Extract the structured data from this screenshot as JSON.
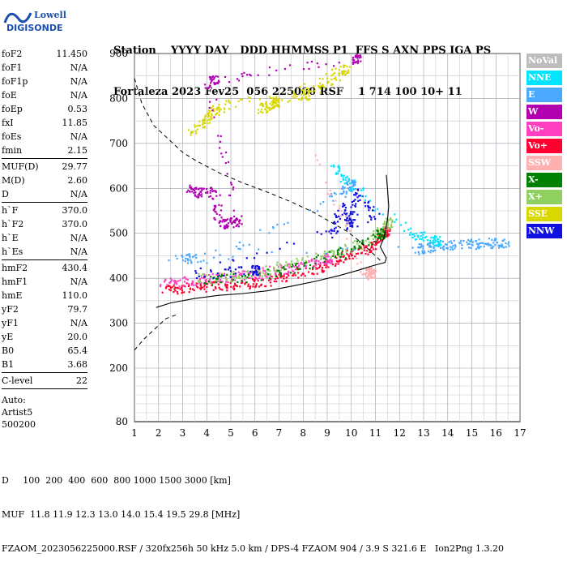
{
  "logo": {
    "line1": "Lowell",
    "line2": "DIGISONDE"
  },
  "header": {
    "row1": "Station    YYYY DAY   DDD HHMMSS P1  FFS S AXN PPS IGA PS",
    "row2": "Fortaleza 2023 Fev25  056 225000 RSF    1 714 100 10+ 11"
  },
  "params": {
    "group1": [
      {
        "k": "foF2",
        "v": "11.450"
      },
      {
        "k": "foF1",
        "v": "N/A"
      },
      {
        "k": "foF1p",
        "v": "N/A"
      },
      {
        "k": "foE",
        "v": "N/A"
      },
      {
        "k": "foEp",
        "v": "0.53"
      },
      {
        "k": "fxI",
        "v": "11.85"
      },
      {
        "k": "foEs",
        "v": "N/A"
      },
      {
        "k": "fmin",
        "v": "2.15"
      }
    ],
    "group2": [
      {
        "k": "MUF(D)",
        "v": "29.77"
      },
      {
        "k": "M(D)",
        "v": "2.60"
      },
      {
        "k": "D",
        "v": "N/A"
      }
    ],
    "group3": [
      {
        "k": "h`F",
        "v": "370.0"
      },
      {
        "k": "h`F2",
        "v": "370.0"
      },
      {
        "k": "h`E",
        "v": "N/A"
      },
      {
        "k": "h`Es",
        "v": "N/A"
      }
    ],
    "group4": [
      {
        "k": "hmF2",
        "v": "430.4"
      },
      {
        "k": "hmF1",
        "v": "N/A"
      },
      {
        "k": "hmE",
        "v": "110.0"
      },
      {
        "k": "yF2",
        "v": "79.7"
      },
      {
        "k": "yF1",
        "v": "N/A"
      },
      {
        "k": "yE",
        "v": "20.0"
      },
      {
        "k": "B0",
        "v": "65.4"
      },
      {
        "k": "B1",
        "v": "3.68"
      }
    ],
    "group5": [
      {
        "k": "C-level",
        "v": "22"
      }
    ]
  },
  "auto": {
    "line1": "Auto:",
    "line2": "Artist5",
    "line3": "500200"
  },
  "footer": {
    "line1": "D     100  200  400  600  800 1000 1500 3000 [km]",
    "line2": "MUF  11.8 11.9 12.3 13.0 14.0 15.4 19.5 29.8 [MHz]",
    "line3": "FZAOM_2023056225000.RSF / 320fx256h 50 kHz 5.0 km / DPS-4 FZAOM 904 / 3.9 S 321.6 E   Ion2Png 1.3.20"
  },
  "legend": [
    {
      "label": "NoVal",
      "color": "#bdbdbd"
    },
    {
      "label": "NNE",
      "color": "#00e5ff"
    },
    {
      "label": "E",
      "color": "#4aa8ff"
    },
    {
      "label": "W",
      "color": "#b000b0"
    },
    {
      "label": "Vo-",
      "color": "#ff40c0"
    },
    {
      "label": "Vo+",
      "color": "#ff0030"
    },
    {
      "label": "SSW",
      "color": "#ffb0b0"
    },
    {
      "label": "X-",
      "color": "#008000"
    },
    {
      "label": "X+",
      "color": "#90d060"
    },
    {
      "label": "SSE",
      "color": "#d8d800"
    },
    {
      "label": "NNW",
      "color": "#1010e0"
    }
  ],
  "chart_data": {
    "type": "scatter",
    "x_ticks": [
      "1",
      "2",
      "3",
      "4",
      "5",
      "6",
      "7",
      "8",
      "9",
      "10",
      "11",
      "12",
      "13",
      "14",
      "15",
      "16",
      "17"
    ],
    "y_ticks": [
      "80",
      "200",
      "300",
      "400",
      "500",
      "600",
      "700",
      "800",
      "900"
    ],
    "xlim": [
      1,
      17
    ],
    "ylim_label_range": [
      80,
      900
    ],
    "y_scale": "hybrid (80 to 200 compressed, 200 to 900 linear)",
    "grid": true,
    "series": [
      {
        "name": "Vo+",
        "color": "#ff0030",
        "points": [
          [
            2.2,
            375
          ],
          [
            3,
            380
          ],
          [
            4,
            383
          ],
          [
            5,
            385
          ],
          [
            6,
            390
          ],
          [
            7,
            400
          ],
          [
            8,
            415
          ],
          [
            9,
            430
          ],
          [
            9.8,
            450
          ],
          [
            10.5,
            465
          ],
          [
            11,
            480
          ],
          [
            11.4,
            505
          ]
        ]
      },
      {
        "name": "Vo-",
        "color": "#ff40c0",
        "points": [
          [
            2.1,
            390
          ],
          [
            3,
            395
          ],
          [
            4,
            400
          ],
          [
            5,
            405
          ],
          [
            6,
            410
          ],
          [
            7,
            420
          ],
          [
            8,
            430
          ],
          [
            9,
            445
          ]
        ]
      },
      {
        "name": "X+",
        "color": "#90d060",
        "points": [
          [
            3.5,
            400
          ],
          [
            5,
            405
          ],
          [
            6.5,
            420
          ],
          [
            8,
            440
          ],
          [
            9.5,
            460
          ],
          [
            10.8,
            490
          ],
          [
            11.5,
            525
          ]
        ]
      },
      {
        "name": "X-",
        "color": "#008000",
        "points": [
          [
            4,
            395
          ],
          [
            6,
            405
          ],
          [
            8,
            430
          ],
          [
            10,
            465
          ],
          [
            11.2,
            500
          ]
        ]
      },
      {
        "name": "SSE",
        "color": "#d8d800",
        "points": [
          [
            3.2,
            720
          ],
          [
            3.8,
            750
          ],
          [
            4.2,
            770
          ],
          [
            4.8,
            790
          ],
          [
            7.8,
            805
          ],
          [
            8.5,
            820
          ],
          [
            9.3,
            850
          ],
          [
            9.8,
            870
          ],
          [
            6.2,
            775
          ],
          [
            6.8,
            790
          ]
        ]
      },
      {
        "name": "W",
        "color": "#b000b0",
        "points": [
          [
            3.2,
            600
          ],
          [
            3.7,
            590
          ],
          [
            4.3,
            595
          ],
          [
            4.5,
            520
          ],
          [
            5,
            525
          ],
          [
            5.3,
            530
          ],
          [
            4,
            840
          ],
          [
            4.5,
            845
          ],
          [
            10.2,
            890
          ]
        ]
      },
      {
        "name": "E",
        "color": "#4aa8ff",
        "points": [
          [
            12.7,
            465
          ],
          [
            13.2,
            470
          ],
          [
            14,
            475
          ],
          [
            15,
            478
          ],
          [
            15.8,
            480
          ],
          [
            16.5,
            480
          ],
          [
            2.5,
            450
          ],
          [
            4,
            440
          ],
          [
            9.6,
            590
          ],
          [
            10,
            610
          ]
        ]
      },
      {
        "name": "NNW",
        "color": "#1010e0",
        "points": [
          [
            9.2,
            500
          ],
          [
            9.5,
            560
          ],
          [
            10,
            520
          ],
          [
            10.2,
            590
          ],
          [
            11,
            540
          ],
          [
            3.5,
            410
          ],
          [
            6,
            420
          ]
        ]
      },
      {
        "name": "NNE",
        "color": "#00e5ff",
        "points": [
          [
            9.3,
            650
          ],
          [
            9.7,
            620
          ],
          [
            12.5,
            500
          ],
          [
            13.5,
            485
          ]
        ]
      },
      {
        "name": "SSW",
        "color": "#ffb0b0",
        "points": [
          [
            8.5,
            680
          ],
          [
            10.5,
            420
          ],
          [
            10.8,
            410
          ]
        ]
      }
    ],
    "true_height_profile": [
      [
        1.9,
        335
      ],
      [
        2.5,
        345
      ],
      [
        3.5,
        355
      ],
      [
        4.5,
        362
      ],
      [
        5.5,
        366
      ],
      [
        6.5,
        372
      ],
      [
        7.5,
        382
      ],
      [
        8.5,
        393
      ],
      [
        9.5,
        406
      ],
      [
        10.3,
        418
      ],
      [
        10.9,
        428
      ],
      [
        11.4,
        435
      ],
      [
        11.45,
        445
      ],
      [
        11.3,
        460
      ],
      [
        11.2,
        470
      ],
      [
        11.35,
        490
      ],
      [
        11.5,
        530
      ],
      [
        11.55,
        560
      ],
      [
        11.5,
        600
      ],
      [
        11.45,
        630
      ]
    ],
    "dashed_profile_left": [
      [
        1,
        845
      ],
      [
        1.3,
        790
      ],
      [
        1.8,
        740
      ],
      [
        2.4,
        710
      ],
      [
        3,
        680
      ],
      [
        3.6,
        660
      ],
      [
        4.5,
        635
      ],
      [
        5.5,
        612
      ],
      [
        6.5,
        592
      ],
      [
        7.5,
        570
      ],
      [
        8.5,
        545
      ],
      [
        9.3,
        520
      ],
      [
        9.8,
        505
      ],
      [
        10.4,
        480
      ],
      [
        10.9,
        455
      ],
      [
        11.2,
        440
      ]
    ],
    "dashed_profile_bottom": [
      [
        1,
        240
      ],
      [
        1.4,
        265
      ],
      [
        1.9,
        290
      ],
      [
        2.3,
        310
      ],
      [
        2.8,
        320
      ]
    ]
  }
}
